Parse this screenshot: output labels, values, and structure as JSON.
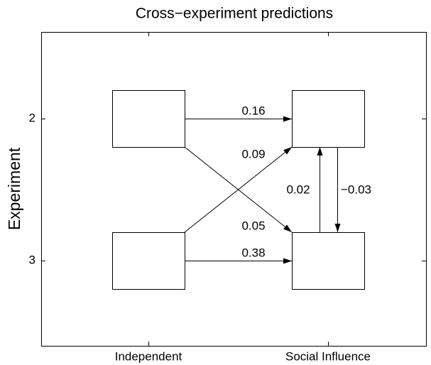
{
  "title": "Cross−experiment predictions",
  "y_axis": {
    "label": "Experiment",
    "ticks": [
      "2",
      "3"
    ]
  },
  "x_axis": {
    "ticks": [
      "Independent",
      "Social Influence"
    ]
  },
  "edges": [
    {
      "from": "Independent 2",
      "to": "Social Influence 2",
      "label": "0.16"
    },
    {
      "from": "Independent 3",
      "to": "Social Influence 2",
      "label": "0.09"
    },
    {
      "from": "Independent 2",
      "to": "Social Influence 3",
      "label": "0.05"
    },
    {
      "from": "Independent 3",
      "to": "Social Influence 3",
      "label": "0.38"
    },
    {
      "from": "Social Influence 3",
      "to": "Social Influence 2",
      "label": "0.02"
    },
    {
      "from": "Social Influence 2",
      "to": "Social Influence 3",
      "label": "−0.03"
    }
  ]
}
